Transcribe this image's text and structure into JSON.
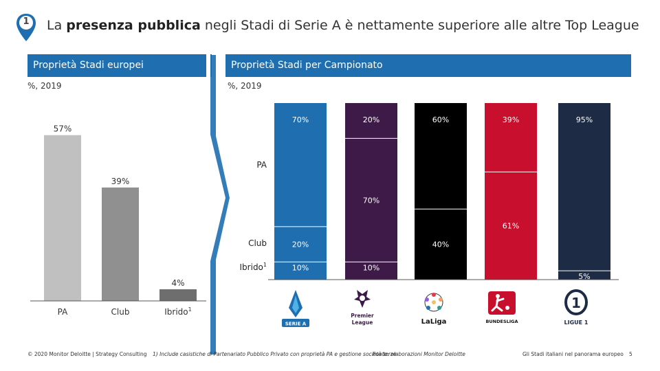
{
  "slide": {
    "badge_number": "1",
    "title_pre": "La ",
    "title_bold": "presenza pubblica",
    "title_post": " negli Stadi di Serie A è nettamente superiore alle altre Top League",
    "left_header": "Proprietà Stadi europei",
    "right_header": "Proprietà Stadi per Campionato",
    "left_subtitle": "%, 2019",
    "right_subtitle": "%, 2019",
    "footer_copyright": "© 2020 Monitor Deloitte | Strategy Consulting",
    "footer_note": "1) Include casistiche di Partenariato Pubblico Privato con proprietà PA e gestione società terze",
    "footer_source": "Fonte: elaborazioni Monitor Deloitte",
    "footer_doc": "Gli Stadi italiani nel panorama europeo",
    "page_number": "5",
    "colors": {
      "header": "#1f6fb0",
      "arrow": "#1f6fb0",
      "serie_a": "#1f6fb0",
      "premier_league": "#3d1a47",
      "laliga": "#000000",
      "bundesliga": "#c8102e",
      "ligue1": "#1d2b45"
    }
  },
  "chart_data": [
    {
      "type": "bar",
      "title": "Proprietà Stadi europei",
      "subtitle": "%, 2019",
      "categories": [
        "PA",
        "Club",
        "Ibrido"
      ],
      "category_superscripts": [
        "",
        "",
        "1"
      ],
      "values": [
        57,
        39,
        4
      ],
      "value_labels": [
        "57%",
        "39%",
        "4%"
      ],
      "colors": [
        "#c0c0c0",
        "#909090",
        "#6e6e6e"
      ],
      "ylim": [
        0,
        60
      ],
      "grid": false,
      "legend": "none"
    },
    {
      "type": "bar",
      "stacked": true,
      "title": "Proprietà Stadi per Campionato",
      "subtitle": "%, 2019",
      "categories": [
        "Serie A",
        "Premier League",
        "LaLiga",
        "Bundesliga",
        "Ligue 1"
      ],
      "row_labels": [
        "PA",
        "Club",
        "Ibrido"
      ],
      "row_label_superscripts": [
        "",
        "",
        "1"
      ],
      "series": [
        {
          "name": "PA",
          "values": [
            70,
            20,
            60,
            39,
            95
          ],
          "labels": [
            "70%",
            "20%",
            "60%",
            "39%",
            "95%"
          ]
        },
        {
          "name": "Club",
          "values": [
            20,
            70,
            40,
            61,
            0
          ],
          "labels": [
            "20%",
            "70%",
            "40%",
            "61%",
            ""
          ]
        },
        {
          "name": "Ibrido",
          "values": [
            10,
            10,
            0,
            0,
            5
          ],
          "labels": [
            "10%",
            "10%",
            "",
            "",
            "5%"
          ]
        }
      ],
      "ylim": [
        0,
        100
      ],
      "grid": false,
      "legend": "row labels on left"
    }
  ],
  "logos": [
    {
      "name": "serie-a",
      "text": "SERIE A"
    },
    {
      "name": "premier-league",
      "text": "Premier League"
    },
    {
      "name": "laliga",
      "text": "LaLiga"
    },
    {
      "name": "bundesliga",
      "text": "BUNDESLIGA"
    },
    {
      "name": "ligue1",
      "text": "LIGUE 1"
    }
  ]
}
